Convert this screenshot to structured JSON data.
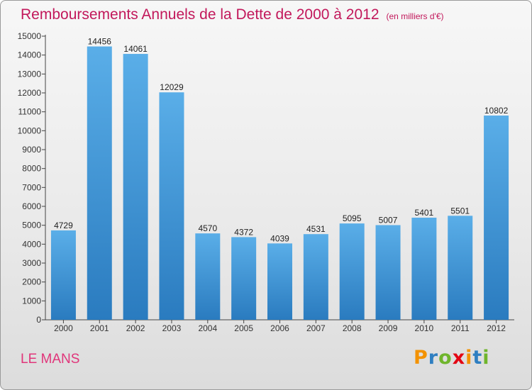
{
  "title": "Remboursements Annuels de la Dette de 2000 à 2012",
  "unit_note": "(en milliers d'€)",
  "city": "LE MANS",
  "logo": {
    "letters": [
      "P",
      "r",
      "o",
      "x",
      "i",
      "t",
      "i"
    ],
    "colors": [
      "#f39200",
      "#2f7fc1",
      "#6fb52c",
      "#e30613",
      "#f39200",
      "#2f7fc1",
      "#6fb52c"
    ]
  },
  "colors": {
    "bar_light": "#5aaee8",
    "bar_dark": "#2a7bbf",
    "title": "#c2185b"
  },
  "chart_data": {
    "type": "bar",
    "title": "Remboursements Annuels de la Dette de 2000 à 2012",
    "categories": [
      "2000",
      "2001",
      "2002",
      "2003",
      "2004",
      "2005",
      "2006",
      "2007",
      "2008",
      "2009",
      "2010",
      "2011",
      "2012"
    ],
    "values": [
      4729,
      14456,
      14061,
      12029,
      4570,
      4372,
      4039,
      4531,
      5095,
      5007,
      5401,
      5501,
      10802
    ],
    "value_labels": [
      "4729",
      "14456",
      "14061",
      "12029",
      "4570",
      "4372",
      "4039",
      "4531",
      "5095",
      "5007",
      "5401",
      "5501",
      "10802"
    ],
    "ylim": [
      0,
      15000
    ],
    "yticks": [
      "0",
      "1000",
      "2000",
      "3000",
      "4000",
      "5000",
      "6000",
      "7000",
      "8000",
      "9000",
      "10000",
      "11000",
      "12000",
      "13000",
      "14000",
      "15000"
    ],
    "grid": false,
    "legend": "none"
  }
}
